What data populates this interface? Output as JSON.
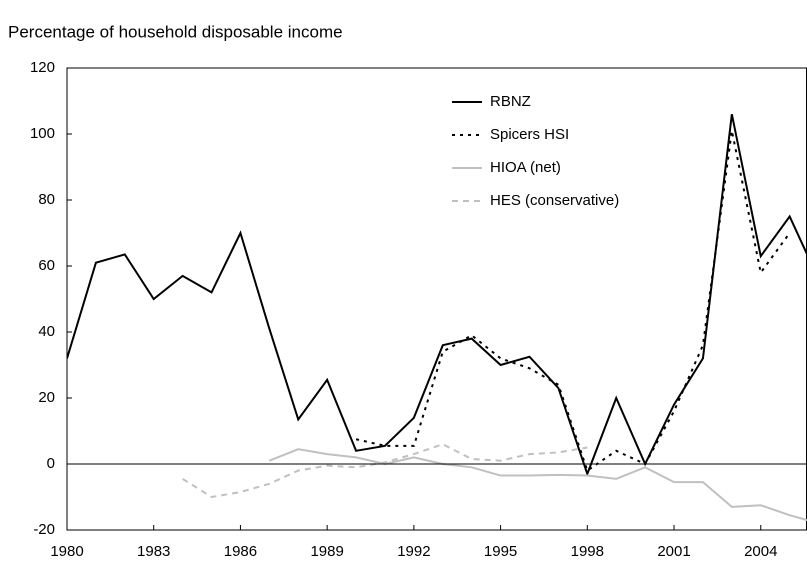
{
  "chart_data": {
    "type": "line",
    "title": "Percentage of household disposable income",
    "x": [
      1980,
      1981,
      1982,
      1983,
      1984,
      1985,
      1986,
      1987,
      1988,
      1989,
      1990,
      1991,
      1992,
      1993,
      1994,
      1995,
      1996,
      1997,
      1998,
      1999,
      2000,
      2001,
      2002,
      2003,
      2004,
      2005,
      2006
    ],
    "series": [
      {
        "name": "RBNZ",
        "color": "#000000",
        "dash": "solid",
        "values": [
          32,
          61,
          63.5,
          50,
          57,
          52,
          70,
          41,
          13.5,
          25.5,
          4,
          5.5,
          14,
          36,
          38,
          30,
          32.5,
          23,
          -3,
          20,
          0,
          18,
          32,
          106,
          63,
          75,
          56
        ]
      },
      {
        "name": "Spicers HSI",
        "color": "#000000",
        "dash": "dotted",
        "values": [
          null,
          null,
          null,
          null,
          null,
          null,
          null,
          null,
          null,
          null,
          7.5,
          5.5,
          5.5,
          34,
          39,
          32,
          29,
          24,
          -2,
          4,
          0,
          16,
          36,
          101,
          58,
          70,
          null
        ]
      },
      {
        "name": "HIOA (net)",
        "color": "#c0c0c0",
        "dash": "solid",
        "values": [
          null,
          null,
          null,
          null,
          null,
          null,
          null,
          1,
          4.5,
          3,
          2,
          0,
          2,
          0,
          -1,
          -3.5,
          -3.5,
          -3.3,
          -3.5,
          -4.5,
          -1,
          -5.5,
          -5.5,
          -13,
          -12.5,
          -15.5,
          -18
        ]
      },
      {
        "name": "HES (conservative)",
        "color": "#c0c0c0",
        "dash": "dashed",
        "values": [
          null,
          null,
          null,
          null,
          -4.5,
          -10,
          -8.5,
          -6,
          -2,
          -0.5,
          -1,
          0.5,
          3,
          6,
          1.5,
          1,
          3,
          3.5,
          5,
          null,
          null,
          null,
          null,
          null,
          null,
          null,
          null
        ]
      }
    ],
    "xlim": [
      1980,
      2005.6
    ],
    "xticks": [
      1980,
      1983,
      1986,
      1989,
      1992,
      1995,
      1998,
      2001,
      2004
    ],
    "ylim": [
      -20,
      120
    ],
    "yticks": [
      -20,
      0,
      20,
      40,
      60,
      80,
      100,
      120
    ],
    "grid": false,
    "legend": "top-right"
  }
}
